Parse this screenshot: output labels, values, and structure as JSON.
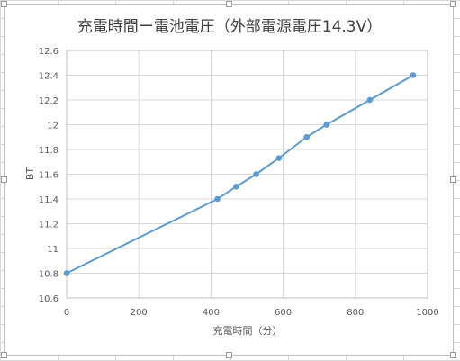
{
  "chart_data": {
    "type": "line",
    "title": "充電時間ー電池電圧（外部電源電圧14.3V）",
    "xlabel": "充電時間（分）",
    "ylabel": "BT",
    "xlim": [
      0,
      1000
    ],
    "ylim": [
      10.6,
      12.6
    ],
    "x_ticks": [
      "0",
      "200",
      "400",
      "600",
      "800",
      "1000"
    ],
    "y_ticks": [
      "10.6",
      "10.8",
      "11",
      "11.2",
      "11.4",
      "11.6",
      "11.8",
      "12",
      "12.2",
      "12.4",
      "12.6"
    ],
    "grid": true,
    "legend": "none",
    "series": [
      {
        "color": "#5b9bd5",
        "x": [
          0,
          418,
          470,
          525,
          588,
          665,
          720,
          840,
          960
        ],
        "y": [
          10.8,
          11.4,
          11.5,
          11.6,
          11.73,
          11.9,
          12.0,
          12.2,
          12.4
        ]
      }
    ]
  }
}
